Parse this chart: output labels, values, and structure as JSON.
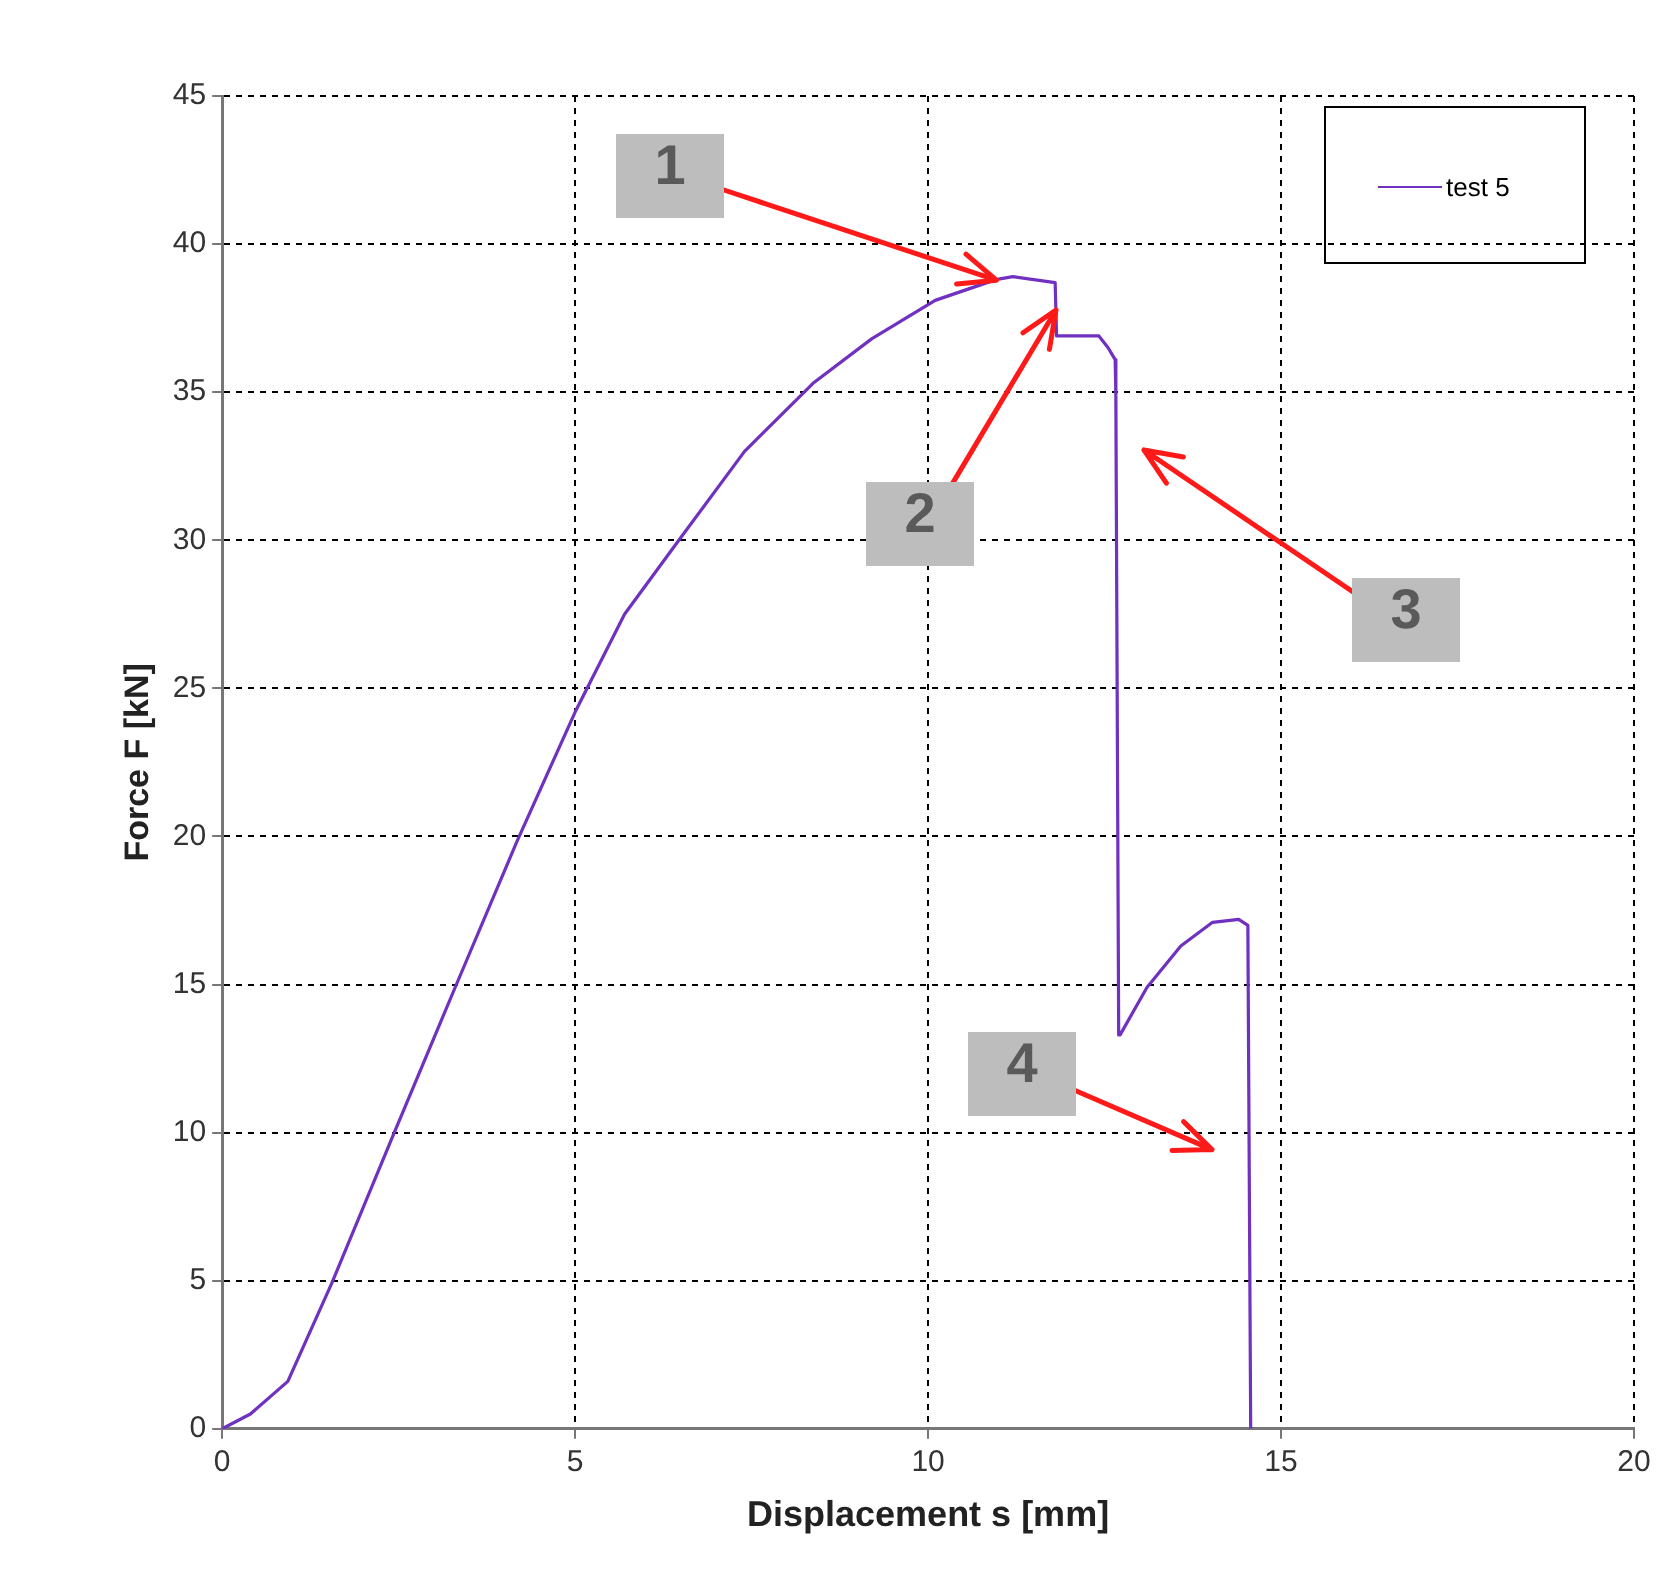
{
  "chart_data": {
    "type": "line",
    "xlabel": "Displacement s [mm]",
    "ylabel": "Force F [kN]",
    "series": [
      {
        "name": "test 5",
        "color": "#7030c0",
        "x": [
          0,
          0.4,
          0.93,
          1.55,
          2.42,
          3.3,
          4.17,
          5.0,
          5.7,
          6.5,
          7.4,
          8.37,
          9.2,
          10.1,
          10.96,
          11.2,
          11.8,
          11.82,
          12.42,
          12.55,
          12.65,
          12.66,
          12.7,
          12.72,
          13.1,
          13.58,
          14.03,
          14.4,
          14.53,
          14.57
        ],
        "values": [
          0,
          0.5,
          1.6,
          4.9,
          9.9,
          14.9,
          19.8,
          24.2,
          27.5,
          30.1,
          33.0,
          35.3,
          36.8,
          38.1,
          38.8,
          38.9,
          38.7,
          36.9,
          36.9,
          36.5,
          36.1,
          34.9,
          13.3,
          13.3,
          14.9,
          16.3,
          17.1,
          17.2,
          17.0,
          0
        ]
      }
    ],
    "xlim": [
      0,
      20
    ],
    "xticks": [
      0,
      5,
      10,
      15,
      20
    ],
    "ylim": [
      0,
      45
    ],
    "yticks": [
      0,
      5,
      10,
      15,
      20,
      25,
      30,
      35,
      40,
      45
    ],
    "grid": true,
    "legend": "top right",
    "marker": "none",
    "line_style": "solid",
    "annotations": [
      {
        "text": "1",
        "x": 10.96,
        "y": 38.8
      },
      {
        "text": "2",
        "x": 11.81,
        "y": 37.8
      },
      "3",
      "4"
    ]
  }
}
